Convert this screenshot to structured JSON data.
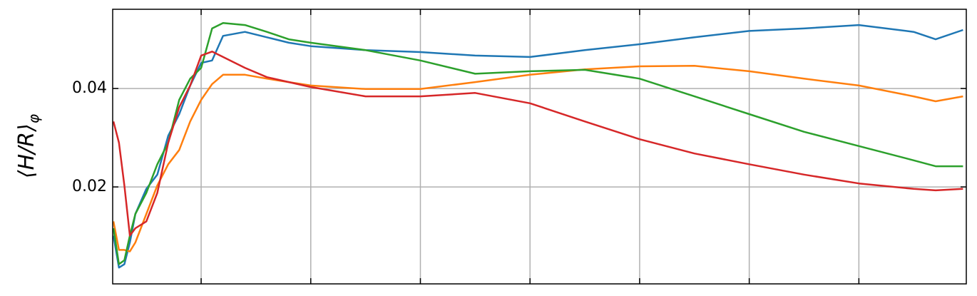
{
  "chart_data": {
    "type": "line",
    "ylabel": "⟨H/R⟩",
    "ylabel_subscript": "φ",
    "x": [
      0.2,
      0.25,
      0.3,
      0.35,
      0.4,
      0.5,
      0.6,
      0.7,
      0.8,
      0.9,
      1.0,
      1.1,
      1.2,
      1.4,
      1.6,
      1.8,
      2.0,
      2.5,
      3.0,
      3.5,
      4.0,
      4.5,
      5.0,
      5.5,
      6.0,
      6.5,
      7.0,
      7.5,
      7.7,
      7.95
    ],
    "series": [
      {
        "color": "#1f77b4",
        "values": [
          0.0101,
          0.0036,
          0.0043,
          0.0087,
          0.0145,
          0.0196,
          0.0225,
          0.0304,
          0.0348,
          0.0406,
          0.0452,
          0.0457,
          0.0507,
          0.0515,
          0.0504,
          0.0493,
          0.0486,
          0.0478,
          0.0474,
          0.0467,
          0.0464,
          0.0478,
          0.049,
          0.0504,
          0.0517,
          0.0522,
          0.0529,
          0.0515,
          0.05,
          0.0519
        ]
      },
      {
        "color": "#ff7f0e",
        "values": [
          0.013,
          0.0072,
          0.0072,
          0.0069,
          0.0087,
          0.0145,
          0.0203,
          0.0246,
          0.0275,
          0.0333,
          0.0377,
          0.0409,
          0.0428,
          0.0428,
          0.042,
          0.0413,
          0.0406,
          0.0399,
          0.0399,
          0.0413,
          0.0428,
          0.0439,
          0.0445,
          0.0446,
          0.0435,
          0.042,
          0.0406,
          0.0384,
          0.0374,
          0.0384
        ]
      },
      {
        "color": "#2ca02c",
        "values": [
          0.0116,
          0.0043,
          0.0051,
          0.0101,
          0.0145,
          0.0188,
          0.0246,
          0.029,
          0.0377,
          0.042,
          0.0442,
          0.0522,
          0.0533,
          0.0529,
          0.0515,
          0.05,
          0.0493,
          0.0478,
          0.0457,
          0.043,
          0.0435,
          0.0438,
          0.042,
          0.0384,
          0.0348,
          0.0312,
          0.0283,
          0.0254,
          0.0242,
          0.0242
        ]
      },
      {
        "color": "#d62728",
        "values": [
          0.0333,
          0.029,
          0.0203,
          0.0101,
          0.0116,
          0.013,
          0.0188,
          0.029,
          0.0362,
          0.0406,
          0.0467,
          0.0475,
          0.0464,
          0.0442,
          0.0423,
          0.0413,
          0.0403,
          0.0384,
          0.0384,
          0.0391,
          0.037,
          0.0333,
          0.0297,
          0.0268,
          0.0246,
          0.0225,
          0.0207,
          0.0196,
          0.0193,
          0.0196
        ]
      }
    ],
    "xlim": [
      0.193,
      7.98
    ],
    "xticks": [
      1,
      2,
      3,
      4,
      5,
      6,
      7
    ],
    "ylim": [
      0.0003,
      0.0561
    ],
    "yticks": [
      0.02,
      0.04
    ],
    "grid": true
  }
}
